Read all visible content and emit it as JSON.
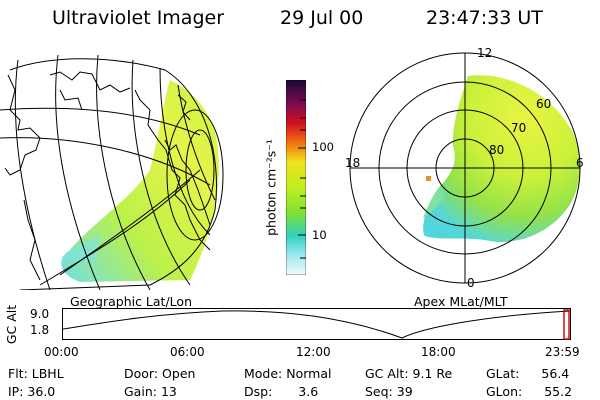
{
  "header": {
    "title": "Ultraviolet Imager",
    "date": "29 Jul 00",
    "time": "23:47:33 UT"
  },
  "colorbar": {
    "unit_label": "photon cm⁻²s⁻¹",
    "ticks": [
      "100",
      "10"
    ]
  },
  "left_panel": {
    "caption": "Geographic Lat/Lon"
  },
  "polar": {
    "caption": "Apex MLat/MLT",
    "mlt_labels": {
      "top": "12",
      "right": "6",
      "bottom": "0",
      "left": "18"
    },
    "lat_labels": [
      "60",
      "70",
      "80"
    ]
  },
  "timeline": {
    "ylabel": "GC Alt",
    "y_ticks": [
      "9.0",
      "1.8"
    ],
    "x_ticks": [
      "00:00",
      "06:00",
      "12:00",
      "18:00",
      "23:59"
    ]
  },
  "info": {
    "flt_label": "Flt:",
    "flt_value": "LBHL",
    "ip_label": "IP:",
    "ip_value": "36.0",
    "door_label": "Door:",
    "door_value": "Open",
    "gain_label": "Gain:",
    "gain_value": "13",
    "mode_label": "Mode:",
    "mode_value": "Normal",
    "dsp_label": "Dsp:",
    "dsp_value": "3.6",
    "gcalt_label": "GC Alt:",
    "gcalt_value": "9.1 Re",
    "seq_label": "Seq:",
    "seq_value": "39",
    "glat_label": "GLat:",
    "glat_value": "56.4",
    "glon_label": "GLon:",
    "glon_value": "55.2"
  }
}
